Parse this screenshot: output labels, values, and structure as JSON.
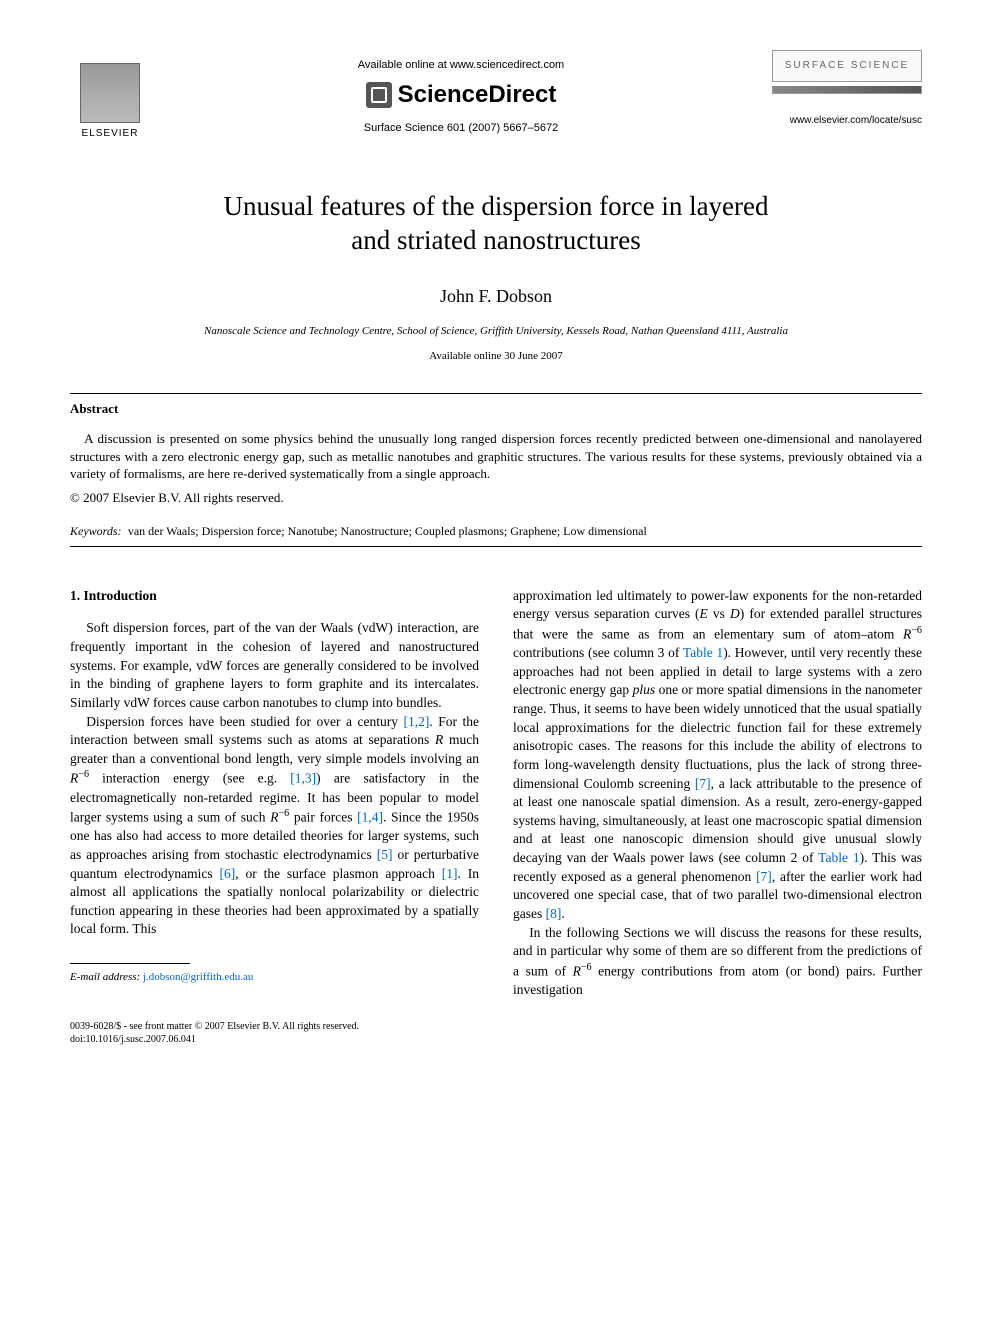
{
  "header": {
    "publisher_name": "ELSEVIER",
    "available_online": "Available online at www.sciencedirect.com",
    "sciencedirect": "ScienceDirect",
    "citation": "Surface Science 601 (2007) 5667–5672",
    "journal_box": "SURFACE SCIENCE",
    "locate_url": "www.elsevier.com/locate/susc"
  },
  "article": {
    "title_line1": "Unusual features of the dispersion force in layered",
    "title_line2": "and striated nanostructures",
    "author": "John F. Dobson",
    "affiliation": "Nanoscale Science and Technology Centre, School of Science, Griffith University, Kessels Road, Nathan Queensland 4111, Australia",
    "available_date": "Available online 30 June 2007"
  },
  "abstract": {
    "heading": "Abstract",
    "text": "A discussion is presented on some physics behind the unusually long ranged dispersion forces recently predicted between one-dimensional and nanolayered structures with a zero electronic energy gap, such as metallic nanotubes and graphitic structures. The various results for these systems, previously obtained via a variety of formalisms, are here re-derived systematically from a single approach.",
    "copyright": "© 2007 Elsevier B.V. All rights reserved."
  },
  "keywords": {
    "label": "Keywords:",
    "list": "van der Waals; Dispersion force; Nanotube; Nanostructure; Coupled plasmons; Graphene; Low dimensional"
  },
  "section1": {
    "heading": "1. Introduction"
  },
  "refs": {
    "r12": "[1,2]",
    "r13": "[1,3]",
    "r14": "[1,4]",
    "r5": "[5]",
    "r6": "[6]",
    "r1": "[1]",
    "r7a": "[7]",
    "r7b": "[7]",
    "r8": "[8]",
    "t1a": "Table 1",
    "t1b": "Table 1"
  },
  "footer": {
    "email_label": "E-mail address:",
    "email": "j.dobson@griffith.edu.au",
    "issn_line": "0039-6028/$ - see front matter © 2007 Elsevier B.V. All rights reserved.",
    "doi_line": "doi:10.1016/j.susc.2007.06.041"
  },
  "colors": {
    "link": "#0066cc",
    "text": "#000000",
    "background": "#ffffff",
    "box_border": "#999999"
  }
}
